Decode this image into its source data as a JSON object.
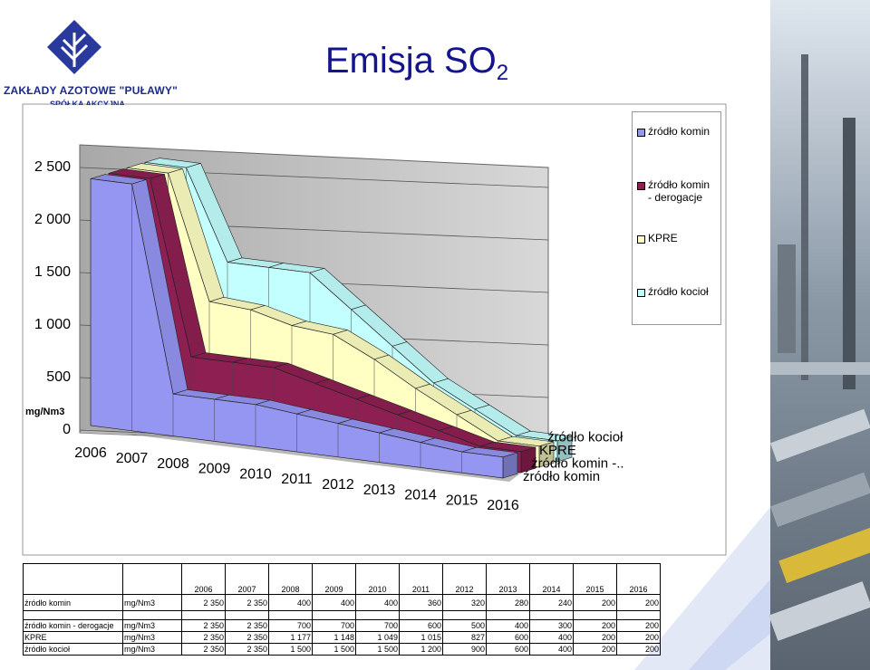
{
  "logo": {
    "name": "ZAKŁADY AZOTOWE \"PUŁAWY\"",
    "subtitle": "SPÓŁKA AKCYJNA"
  },
  "chart_data": {
    "type": "area3d",
    "title": "Emisja SO",
    "title_sub": "2",
    "unit": "mg/Nm3",
    "categories": [
      "2006",
      "2007",
      "2008",
      "2009",
      "2010",
      "2011",
      "2012",
      "2013",
      "2014",
      "2015",
      "2016"
    ],
    "ylim": [
      0,
      2500
    ],
    "yticks": [
      0,
      500,
      {
        "value": 1000,
        "label": "1 000"
      },
      {
        "value": 1500,
        "label": "1 500"
      },
      {
        "value": 2000,
        "label": "2 000"
      },
      {
        "value": 2500,
        "label": "2 500"
      }
    ],
    "grid": true,
    "depth_labels": [
      "źródło komin",
      "źródło komin -..",
      "KPRE",
      "źródło kocioł"
    ],
    "series": [
      {
        "name": "źródło komin",
        "color": "#9595f2",
        "values": [
          2350,
          2350,
          400,
          400,
          400,
          360,
          320,
          280,
          240,
          200,
          200
        ],
        "value_labels": [
          "2 350",
          "2 350",
          "400",
          "400",
          "400",
          "360",
          "320",
          "280",
          "240",
          "200",
          "200"
        ]
      },
      {
        "name": "źródło komin - derogacje",
        "color": "#8e1f52",
        "values": [
          2350,
          2350,
          700,
          700,
          700,
          600,
          500,
          400,
          300,
          200,
          200
        ],
        "value_labels": [
          "2 350",
          "2 350",
          "700",
          "700",
          "700",
          "600",
          "500",
          "400",
          "300",
          "200",
          "200"
        ]
      },
      {
        "name": "KPRE",
        "color": "#ffffc4",
        "values": [
          2350,
          2350,
          1177,
          1148,
          1049,
          1015,
          827,
          600,
          400,
          200,
          200
        ],
        "value_labels": [
          "2 350",
          "2 350",
          "1 177",
          "1 148",
          "1 049",
          "1 015",
          "827",
          "600",
          "400",
          "200",
          "200"
        ]
      },
      {
        "name": "źródło kocioł",
        "color": "#c4ffff",
        "values": [
          2350,
          2350,
          1500,
          1500,
          1500,
          1200,
          900,
          600,
          400,
          200,
          200
        ],
        "value_labels": [
          "2 350",
          "2 350",
          "1 500",
          "1 500",
          "1 500",
          "1 200",
          "900",
          "600",
          "400",
          "200",
          "200"
        ]
      }
    ]
  }
}
